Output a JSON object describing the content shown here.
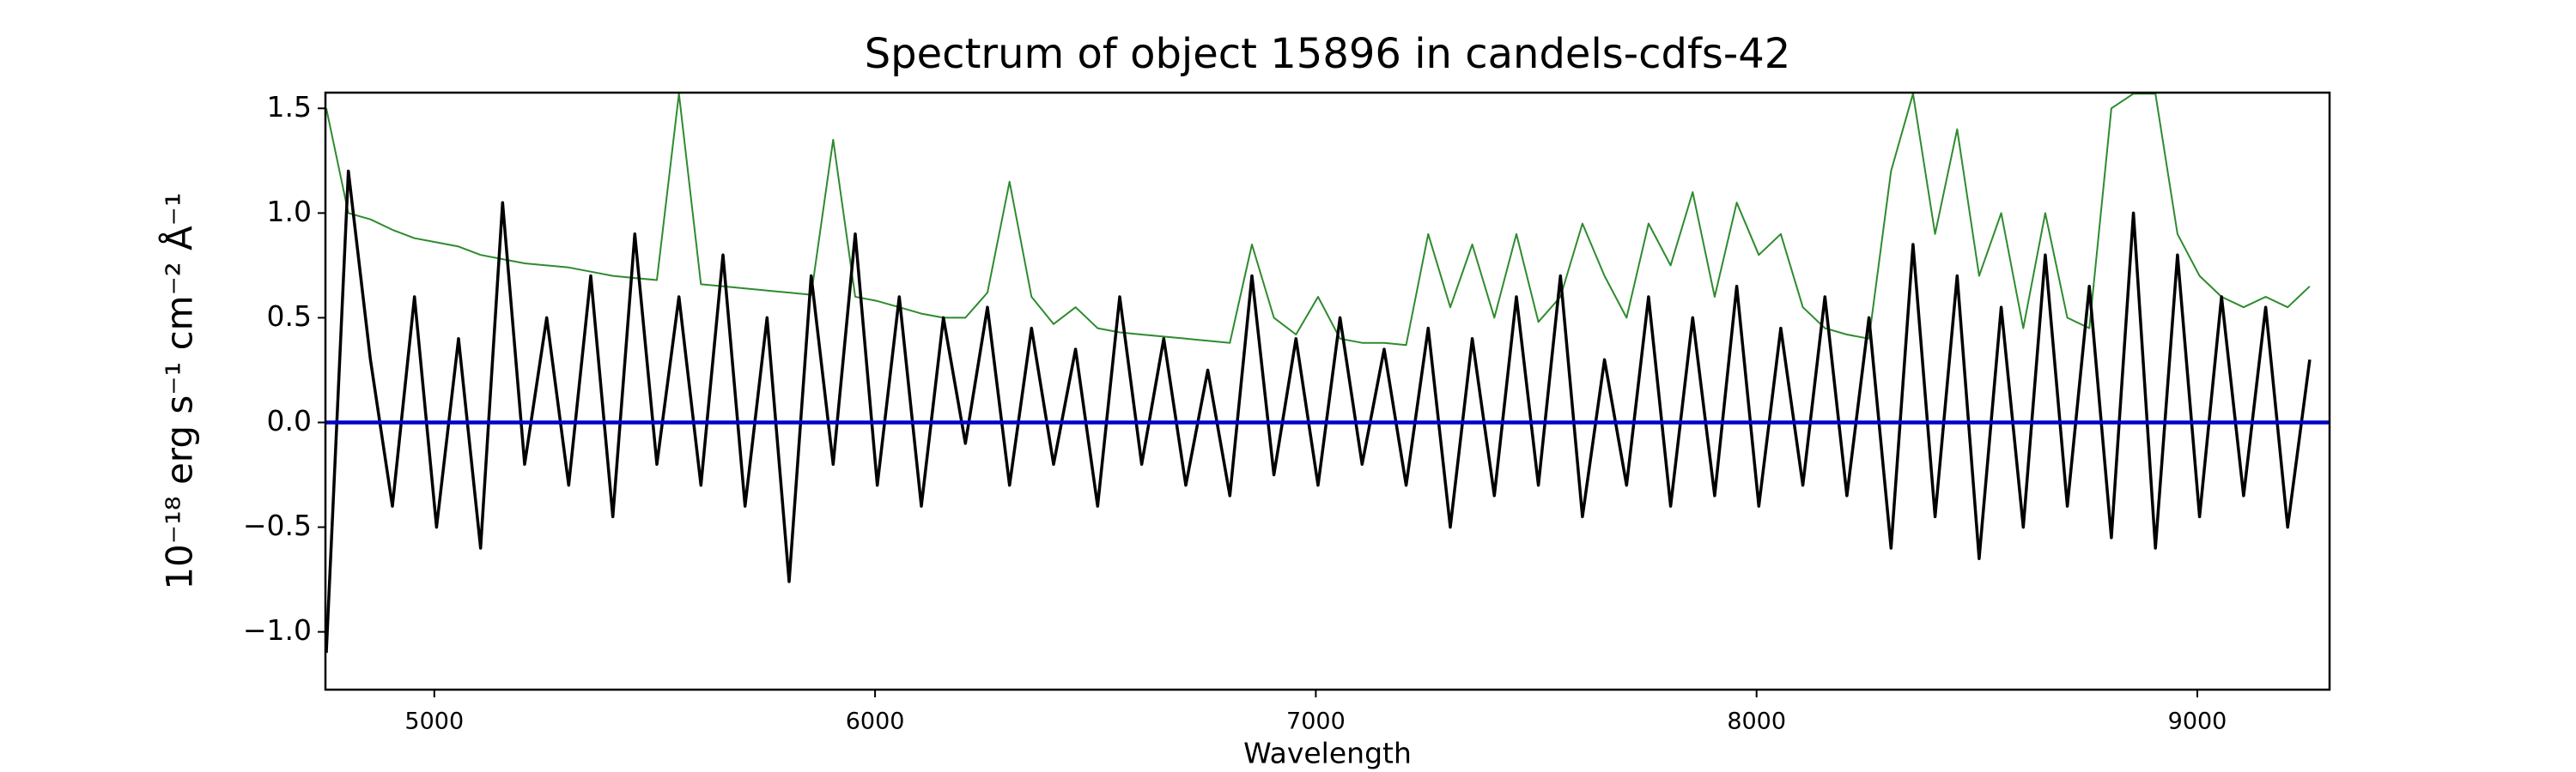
{
  "chart_data": {
    "type": "line",
    "title": "Spectrum of object 15896 in candels-cdfs-42",
    "x_label": "Wavelength",
    "y_label": "10⁻¹⁸ erg s⁻¹ cm⁻² Å⁻¹",
    "xlim": [
      4753,
      9300
    ],
    "ylim": [
      -1.276,
      1.575
    ],
    "xticks": [
      5000,
      6000,
      7000,
      8000,
      9000
    ],
    "yticks": [
      {
        "value": -1.0,
        "label": "−1.0"
      },
      {
        "value": -0.5,
        "label": "−0.5"
      },
      {
        "value": 0.0,
        "label": "0.0"
      },
      0.5,
      {
        "value": 1.0,
        "label": "1.0"
      },
      1.5
    ],
    "x": [
      4755,
      4805,
      4855,
      4905,
      4955,
      5005,
      5055,
      5105,
      5155,
      5205,
      5255,
      5305,
      5355,
      5405,
      5455,
      5505,
      5555,
      5605,
      5655,
      5705,
      5755,
      5805,
      5855,
      5905,
      5955,
      6005,
      6055,
      6105,
      6155,
      6205,
      6255,
      6305,
      6355,
      6405,
      6455,
      6505,
      6555,
      6605,
      6655,
      6705,
      6755,
      6805,
      6855,
      6905,
      6955,
      7005,
      7055,
      7105,
      7155,
      7205,
      7255,
      7305,
      7355,
      7405,
      7455,
      7505,
      7555,
      7605,
      7655,
      7705,
      7755,
      7805,
      7855,
      7905,
      7955,
      8005,
      8055,
      8105,
      8155,
      8205,
      8255,
      8305,
      8355,
      8405,
      8455,
      8505,
      8555,
      8605,
      8655,
      8705,
      8755,
      8805,
      8855,
      8905,
      8955,
      9005,
      9055,
      9105,
      9155,
      9205,
      9255
    ],
    "series": [
      {
        "color": "#2e8b2e",
        "width": 2,
        "values": [
          1.5,
          1.0,
          0.97,
          0.92,
          0.88,
          0.86,
          0.84,
          0.8,
          0.78,
          0.76,
          0.75,
          0.74,
          0.72,
          0.7,
          0.69,
          0.68,
          1.57,
          0.66,
          0.65,
          0.64,
          0.63,
          0.62,
          0.61,
          1.35,
          0.6,
          0.58,
          0.55,
          0.52,
          0.5,
          0.5,
          0.62,
          1.15,
          0.6,
          0.47,
          0.55,
          0.45,
          0.43,
          0.42,
          0.41,
          0.4,
          0.39,
          0.38,
          0.85,
          0.5,
          0.42,
          0.6,
          0.4,
          0.38,
          0.38,
          0.37,
          0.9,
          0.55,
          0.85,
          0.5,
          0.9,
          0.48,
          0.6,
          0.95,
          0.7,
          0.5,
          0.95,
          0.75,
          1.1,
          0.6,
          1.05,
          0.8,
          0.9,
          0.55,
          0.45,
          0.42,
          0.4,
          1.2,
          1.57,
          0.9,
          1.4,
          0.7,
          1.0,
          0.45,
          1.0,
          0.5,
          0.45,
          1.5,
          1.57,
          1.57,
          0.9,
          0.7,
          0.6,
          0.55,
          0.6,
          0.55,
          0.65
        ]
      },
      {
        "color": "#000000",
        "width": 3.5,
        "values": [
          -1.1,
          1.2,
          0.3,
          -0.4,
          0.6,
          -0.5,
          0.4,
          -0.6,
          1.05,
          -0.2,
          0.5,
          -0.3,
          0.7,
          -0.45,
          0.9,
          -0.2,
          0.6,
          -0.3,
          0.8,
          -0.4,
          0.5,
          -0.76,
          0.7,
          -0.2,
          0.9,
          -0.3,
          0.6,
          -0.4,
          0.5,
          -0.1,
          0.55,
          -0.3,
          0.45,
          -0.2,
          0.35,
          -0.4,
          0.6,
          -0.2,
          0.4,
          -0.3,
          0.25,
          -0.35,
          0.7,
          -0.25,
          0.4,
          -0.3,
          0.5,
          -0.2,
          0.35,
          -0.3,
          0.45,
          -0.5,
          0.4,
          -0.35,
          0.6,
          -0.3,
          0.7,
          -0.45,
          0.3,
          -0.3,
          0.6,
          -0.4,
          0.5,
          -0.35,
          0.65,
          -0.4,
          0.45,
          -0.3,
          0.6,
          -0.35,
          0.5,
          -0.6,
          0.85,
          -0.45,
          0.7,
          -0.65,
          0.55,
          -0.5,
          0.8,
          -0.4,
          0.65,
          -0.55,
          1.0,
          -0.6,
          0.8,
          -0.45,
          0.6,
          -0.35,
          0.55,
          -0.5,
          0.3
        ]
      },
      {
        "color": "#0000cc",
        "width": 4.5,
        "x": [
          4753,
          9300
        ],
        "values": [
          0,
          0
        ]
      }
    ]
  }
}
